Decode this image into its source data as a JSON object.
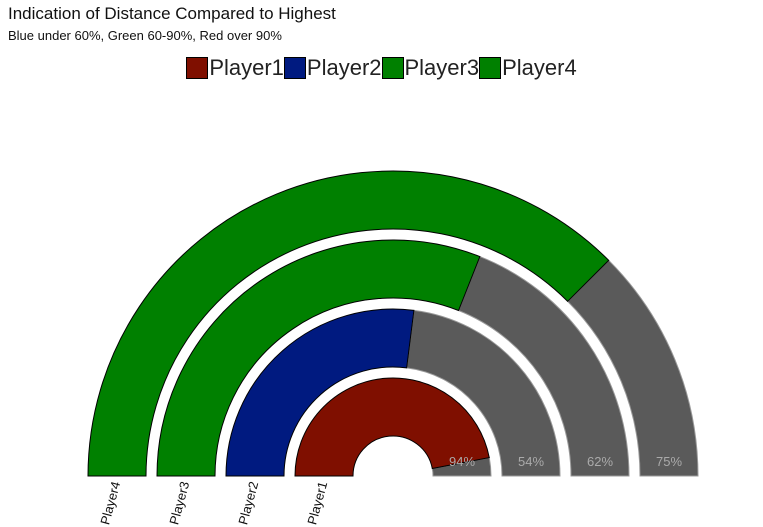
{
  "chart_data": {
    "type": "radial-bar",
    "title": "Indication of Distance Compared to Highest",
    "subtitle": "Blue under 60%, Green 60-90%, Red over 90%",
    "categories": [
      "Player1",
      "Player2",
      "Player3",
      "Player4"
    ],
    "values": [
      94,
      54,
      62,
      75
    ],
    "value_labels": [
      "94%",
      "54%",
      "62%",
      "75%"
    ],
    "colors": [
      "#7f0f00",
      "#001a80",
      "#008000",
      "#008000"
    ],
    "remainder_color": "#5a5a5a",
    "ylim": [
      0,
      100
    ]
  }
}
